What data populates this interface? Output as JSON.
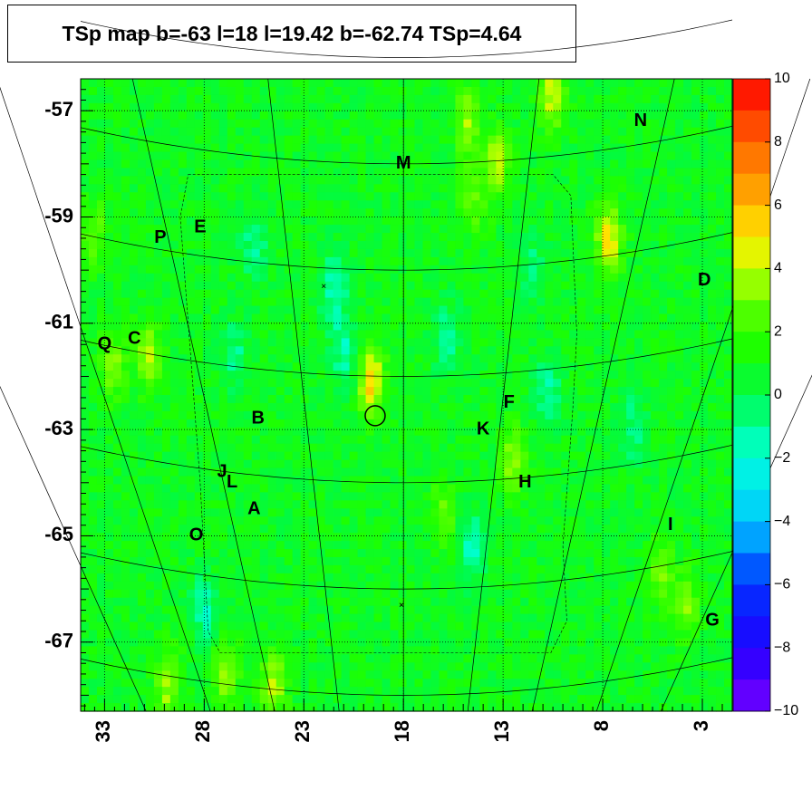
{
  "title": "TSp map b=-63 l=18 l=19.42 b=-62.74 TSp=4.64",
  "chart_data": {
    "type": "heatmap",
    "title": "TSp map b=-63 l=18 l=19.42 b=-62.74 TSp=4.64",
    "xlabel": "",
    "ylabel": "",
    "x_axis": {
      "reversed": true,
      "range": [
        34.2,
        1.5
      ],
      "tick_values": [
        33,
        28,
        23,
        18,
        13,
        8,
        3
      ],
      "tick_labels": [
        "33",
        "28",
        "23",
        "18",
        "13",
        "8",
        "3"
      ]
    },
    "y_axis": {
      "range": [
        -68.3,
        -56.4
      ],
      "tick_values": [
        -57,
        -59,
        -61,
        -63,
        -65,
        -67
      ],
      "tick_labels": [
        "-57",
        "-59",
        "-61",
        "-63",
        "-65",
        "-67"
      ]
    },
    "colorbar": {
      "range": [
        -10,
        10
      ],
      "tick_values": [
        10,
        8,
        6,
        4,
        2,
        0,
        -2,
        -4,
        -6,
        -8,
        -10
      ],
      "tick_labels": [
        "10",
        "8",
        "6",
        "4",
        "2",
        "0",
        "−2",
        "−4",
        "−6",
        "−8",
        "−10"
      ]
    },
    "background_level": 0.8,
    "hotspots": [
      {
        "l": 19.6,
        "b": -62.1,
        "v": 4.6
      },
      {
        "l": 7.7,
        "b": -59.4,
        "v": 4.2
      },
      {
        "l": 13.3,
        "b": -58.0,
        "v": 3.2
      },
      {
        "l": 14.8,
        "b": -57.2,
        "v": 2.8
      },
      {
        "l": 10.5,
        "b": -56.7,
        "v": 3.6
      },
      {
        "l": 30.8,
        "b": -61.6,
        "v": 3.0
      },
      {
        "l": 32.6,
        "b": -61.8,
        "v": 2.4
      },
      {
        "l": 24.5,
        "b": -67.8,
        "v": 3.0
      },
      {
        "l": 26.9,
        "b": -67.6,
        "v": 2.6
      },
      {
        "l": 29.8,
        "b": -67.8,
        "v": 3.0
      },
      {
        "l": 12.5,
        "b": -63.6,
        "v": 2.6
      },
      {
        "l": 5.0,
        "b": -65.7,
        "v": 2.4
      },
      {
        "l": 3.8,
        "b": -66.3,
        "v": 2.2
      },
      {
        "l": 16.0,
        "b": -64.6,
        "v": 2.0
      },
      {
        "l": 14.5,
        "b": -58.7,
        "v": 2.0
      },
      {
        "l": 33.5,
        "b": -59.3,
        "v": 2.0
      }
    ],
    "coldspots": [
      {
        "l": 21.5,
        "b": -60.3,
        "v": -2.5
      },
      {
        "l": 14.6,
        "b": -65.2,
        "v": -2.6
      },
      {
        "l": 21.0,
        "b": -61.5,
        "v": -2.2
      },
      {
        "l": 15.8,
        "b": -61.3,
        "v": -2.0
      },
      {
        "l": 10.8,
        "b": -62.3,
        "v": -2.0
      },
      {
        "l": 26.5,
        "b": -61.6,
        "v": -1.8
      },
      {
        "l": 28.0,
        "b": -66.4,
        "v": -2.2
      },
      {
        "l": 25.5,
        "b": -59.5,
        "v": -1.8
      },
      {
        "l": 11.5,
        "b": -60.0,
        "v": -1.5
      },
      {
        "l": 6.5,
        "b": -63.0,
        "v": -1.6
      }
    ],
    "circle": {
      "l": 19.42,
      "b": -62.74,
      "radius_deg": 0.5
    },
    "crosses": [
      {
        "l": 22.0,
        "b": -60.3
      },
      {
        "l": 18.1,
        "b": -66.3
      }
    ],
    "source_labels": [
      {
        "text": "M",
        "l": 18.0,
        "b": -58.0
      },
      {
        "text": "N",
        "l": 6.1,
        "b": -57.2
      },
      {
        "text": "P",
        "l": 30.2,
        "b": -59.4
      },
      {
        "text": "E",
        "l": 28.2,
        "b": -59.2
      },
      {
        "text": "D",
        "l": 2.9,
        "b": -60.2
      },
      {
        "text": "Q",
        "l": 33.0,
        "b": -61.4
      },
      {
        "text": "C",
        "l": 31.5,
        "b": -61.3
      },
      {
        "text": "F",
        "l": 12.7,
        "b": -62.5
      },
      {
        "text": "B",
        "l": 25.3,
        "b": -62.8
      },
      {
        "text": "K",
        "l": 14.0,
        "b": -63.0
      },
      {
        "text": "J",
        "l": 27.1,
        "b": -63.8
      },
      {
        "text": "L",
        "l": 26.6,
        "b": -64.0
      },
      {
        "text": "H",
        "l": 11.9,
        "b": -64.0
      },
      {
        "text": "A",
        "l": 25.5,
        "b": -64.5
      },
      {
        "text": "I",
        "l": 4.6,
        "b": -64.8
      },
      {
        "text": "O",
        "l": 28.4,
        "b": -65.0
      },
      {
        "text": "G",
        "l": 2.5,
        "b": -66.6
      }
    ]
  }
}
